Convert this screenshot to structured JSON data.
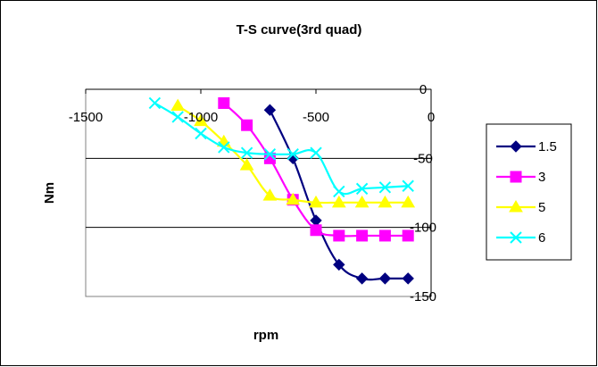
{
  "chart_data": {
    "type": "line",
    "title": "T-S curve(3rd quad)",
    "xlabel": "rpm",
    "ylabel": "Nm",
    "xlim": [
      -1500,
      0
    ],
    "ylim": [
      -150,
      0
    ],
    "x_ticks": [
      -1500,
      -1000,
      -500,
      0
    ],
    "y_ticks": [
      0,
      -50,
      -100,
      -150
    ],
    "grid": "horizontal",
    "legend_position": "right",
    "series": [
      {
        "name": "1.5",
        "color": "#000080",
        "marker": "diamond",
        "x": [
          -700,
          -600,
          -500,
          -400,
          -300,
          -200,
          -100
        ],
        "y": [
          -15,
          -50,
          -95,
          -127,
          -137,
          -137,
          -137
        ]
      },
      {
        "name": "3",
        "color": "#FF00FF",
        "marker": "square",
        "x": [
          -900,
          -800,
          -700,
          -600,
          -500,
          -400,
          -300,
          -200,
          -100
        ],
        "y": [
          -10,
          -26,
          -50,
          -80,
          -102,
          -106,
          -106,
          -106,
          -106
        ]
      },
      {
        "name": "5",
        "color": "#FFFF00",
        "marker": "triangle",
        "x": [
          -1100,
          -1000,
          -900,
          -800,
          -700,
          -600,
          -500,
          -400,
          -300,
          -200,
          -100
        ],
        "y": [
          -12,
          -23,
          -38,
          -55,
          -77,
          -80,
          -82,
          -82,
          -82,
          -82,
          -82
        ]
      },
      {
        "name": "6",
        "color": "#00FFFF",
        "marker": "x",
        "x": [
          -1200,
          -1100,
          -1000,
          -900,
          -800,
          -700,
          -600,
          -500,
          -400,
          -300,
          -200,
          -100
        ],
        "y": [
          -10,
          -20,
          -32,
          -42,
          -46,
          -47,
          -47,
          -46,
          -74,
          -72,
          -71,
          -70
        ]
      }
    ]
  }
}
